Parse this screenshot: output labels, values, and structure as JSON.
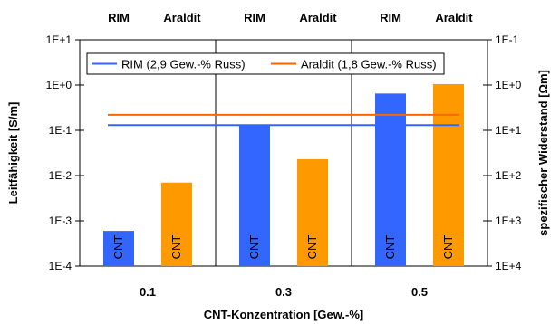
{
  "chart_data": {
    "type": "bar",
    "categories": [
      "0.1",
      "0.3",
      "0.5"
    ],
    "top_labels": [
      "RIM",
      "Araldit",
      "RIM",
      "Araldit",
      "RIM",
      "Araldit"
    ],
    "series": [
      {
        "name": "RIM",
        "values": [
          0.0006,
          0.13,
          0.65
        ],
        "color": "#3366ff",
        "bar_label": "CNT"
      },
      {
        "name": "Araldit",
        "values": [
          0.007,
          0.023,
          1.05
        ],
        "color": "#ff9900",
        "bar_label": "CNT"
      }
    ],
    "reference_lines": [
      {
        "name": "RIM (2,9 Gew.-% Russ)",
        "value": 0.13,
        "color": "#3366ff",
        "x_from": "0.1",
        "x_to": "0.5"
      },
      {
        "name": "Araldit (1,8 Gew.-% Russ)",
        "value": 0.22,
        "color": "#ff6600",
        "x_from": "0.1",
        "x_to": "0.5"
      }
    ],
    "xlabel": "CNT-Konzentration [Gew.-%]",
    "ylabel": "Leitfähigkeit [S/m]",
    "y2label": "spezifischer Widerstand [Ωm]",
    "y_scale": "log",
    "ylim": [
      0.0001,
      10
    ],
    "yticks": [
      "1E-4",
      "1E-3",
      "1E-2",
      "1E-1",
      "1E+0",
      "1E+1"
    ],
    "y2ticks": [
      "1E+4",
      "1E+3",
      "1E+2",
      "1E+1",
      "1E+0",
      "1E-1"
    ],
    "grid": "vertical",
    "legend": "top"
  }
}
